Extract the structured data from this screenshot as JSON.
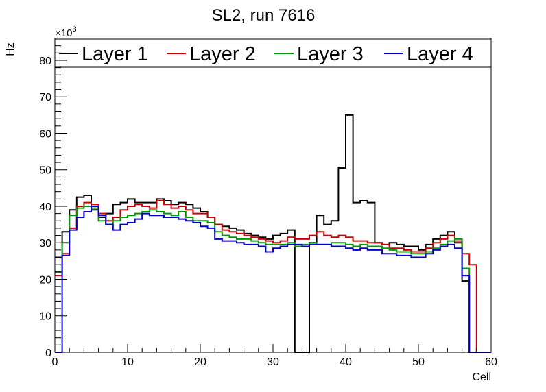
{
  "chart_data": {
    "type": "histogram-step",
    "title": "SL2, run 7616",
    "xlabel": "Cell",
    "ylabel": "Hz",
    "y_multiplier_label": "×10",
    "y_multiplier_exponent": "3",
    "xlim": [
      0,
      60
    ],
    "ylim": [
      0,
      86
    ],
    "x_major_ticks": [
      0,
      10,
      20,
      30,
      40,
      50,
      60
    ],
    "y_major_ticks": [
      0,
      10,
      20,
      30,
      40,
      50,
      60,
      70,
      80
    ],
    "bin_width": 1,
    "legend_position": "top",
    "series": [
      {
        "name": "Layer 1",
        "color": "#000000",
        "values": [
          26,
          33,
          39,
          42.5,
          43,
          39,
          37,
          38,
          40.5,
          41,
          42,
          41,
          41,
          41,
          42,
          41.5,
          40.5,
          41,
          40.5,
          39.5,
          38.5,
          37,
          35,
          34.5,
          34,
          33.5,
          32.5,
          32,
          31.5,
          31,
          32,
          32.5,
          33.5,
          0,
          0,
          30,
          37.5,
          35,
          36,
          50.5,
          65,
          41,
          41.5,
          41,
          30,
          29.5,
          30,
          29.5,
          29,
          29,
          28,
          29.5,
          31,
          32,
          33,
          30,
          19.5,
          0,
          0,
          0
        ]
      },
      {
        "name": "Layer 2",
        "color": "#cc0000",
        "values": [
          21,
          27,
          34,
          40,
          41,
          40.5,
          38,
          36,
          37,
          39,
          40,
          40.5,
          40,
          39.5,
          41.5,
          40.5,
          39.5,
          40,
          39,
          38,
          38,
          37,
          35,
          33.5,
          33,
          32.5,
          32,
          31.5,
          31,
          30.5,
          30,
          30.5,
          31.5,
          31,
          31,
          32,
          33,
          32,
          31.5,
          32,
          31.5,
          30.5,
          30.5,
          30,
          30,
          29.5,
          28.5,
          28.5,
          28,
          27.5,
          27.5,
          28.5,
          30,
          31,
          32,
          30.5,
          27,
          24,
          0,
          0
        ]
      },
      {
        "name": "Layer 3",
        "color": "#009900",
        "values": [
          22,
          30,
          37.5,
          39.5,
          40,
          39.5,
          36,
          35,
          36,
          37,
          37.5,
          38,
          38.5,
          39,
          38.5,
          38,
          37.5,
          38.5,
          37,
          36,
          36,
          35.5,
          33,
          32,
          31.5,
          31,
          31,
          30.5,
          30,
          29.5,
          29.5,
          29.5,
          30,
          29,
          29.5,
          30,
          29.5,
          29.5,
          30,
          30,
          29.5,
          29,
          29.5,
          29,
          29,
          28.5,
          28,
          27.5,
          27.5,
          27,
          27,
          27.5,
          28.5,
          29.5,
          30.5,
          31,
          23,
          0,
          0,
          0
        ]
      },
      {
        "name": "Layer 4",
        "color": "#0000cc",
        "values": [
          0,
          26.5,
          33.5,
          37,
          38.5,
          40,
          37.5,
          35,
          33.5,
          35,
          35.5,
          36.5,
          38,
          37.5,
          37.5,
          37,
          37,
          36.5,
          36,
          35.5,
          34.5,
          34,
          31,
          30.5,
          30.5,
          30,
          29.5,
          29.5,
          29,
          27.5,
          28.5,
          29,
          29.5,
          29.5,
          29,
          29.5,
          29.5,
          29.5,
          29,
          29,
          28.5,
          28,
          28.5,
          28,
          28,
          27,
          27,
          26.5,
          26.5,
          26,
          26,
          27,
          28,
          29,
          29.5,
          28.5,
          21,
          0,
          0,
          0
        ]
      }
    ]
  }
}
